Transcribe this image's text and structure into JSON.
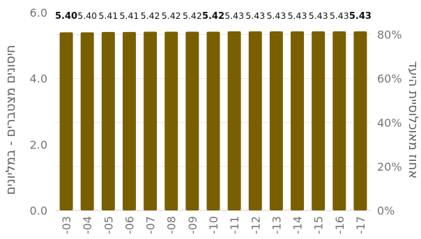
{
  "chart_data": {
    "type": "bar",
    "categories": [
      "-03",
      "-04",
      "-05",
      "-06",
      "-07",
      "-08",
      "-09",
      "-10",
      "-11",
      "-12",
      "-13",
      "-14",
      "-15",
      "-16",
      "-17"
    ],
    "series": [
      {
        "values": [
          5.4,
          5.4,
          5.41,
          5.41,
          5.42,
          5.42,
          5.42,
          5.42,
          5.43,
          5.43,
          5.43,
          5.43,
          5.43,
          5.43,
          5.43
        ],
        "labels": [
          "5.40",
          "5.40",
          "5.41",
          "5.41",
          "5.42",
          "5.42",
          "5.42",
          "5.42",
          "5.43",
          "5.43",
          "5.43",
          "5.43",
          "5.43",
          "5.43",
          "5.43"
        ],
        "bold_labels": [
          true,
          false,
          false,
          false,
          false,
          false,
          false,
          true,
          false,
          false,
          false,
          false,
          false,
          false,
          true
        ],
        "color": "#7a5f00"
      }
    ],
    "ylabel_left": "חיסונים מצטברים - במליונים",
    "ylabel_right": "אחוז מאוכלוסיית היעד",
    "ylim_left": [
      0,
      6
    ],
    "yticks_left": [
      "0.0",
      "2.0",
      "4.0",
      "6.0"
    ],
    "ylim_right": [
      0,
      0.9
    ],
    "yticks_right": [
      "0%",
      "20%",
      "40%",
      "60%",
      "80%"
    ],
    "grid": true
  }
}
